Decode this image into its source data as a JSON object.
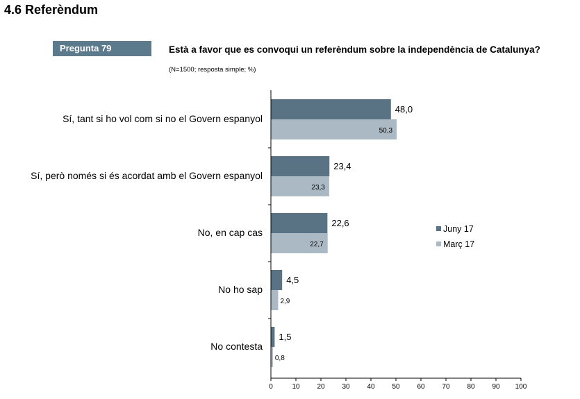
{
  "section": {
    "title": "4.6 Referèndum"
  },
  "question": {
    "badge": "Pregunta 79",
    "text": "Està a favor que es convoqui un referèndum sobre la independència de Catalunya?",
    "note": "(N=1500; resposta simple; %)"
  },
  "colors": {
    "series_a": "#5a7384",
    "series_b": "#aab9c4",
    "axis": "#000000"
  },
  "chart_data": {
    "type": "bar",
    "orientation": "horizontal",
    "categories": [
      "Sí, tant si ho vol com si no el Govern espanyol",
      "Sí, però només si és acordat amb el Govern espanyol",
      "No, en cap cas",
      "No ho sap",
      "No contesta"
    ],
    "series": [
      {
        "name": "Juny 17",
        "values": [
          48.0,
          23.4,
          22.6,
          4.5,
          1.5
        ],
        "labels": [
          "48,0",
          "23,4",
          "22,6",
          "4,5",
          "1,5"
        ]
      },
      {
        "name": "Març 17",
        "values": [
          50.3,
          23.3,
          22.7,
          2.9,
          0.8
        ],
        "labels": [
          "50,3",
          "23,3",
          "22,7",
          "2,9",
          "0,8"
        ]
      }
    ],
    "xlim": [
      0,
      100
    ],
    "xticks": [
      "0",
      "10",
      "20",
      "30",
      "40",
      "50",
      "60",
      "70",
      "80",
      "90",
      "100"
    ],
    "legend_position": "right",
    "grid": false
  }
}
